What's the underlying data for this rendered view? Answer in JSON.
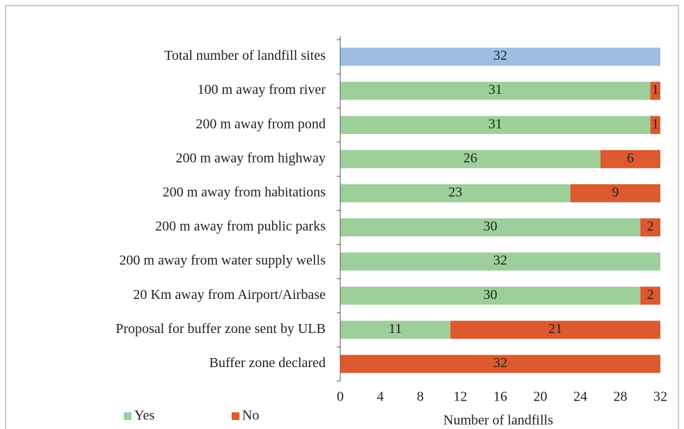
{
  "chart_data": {
    "type": "stacked_bar_horizontal",
    "categories": [
      "Total number of landfill sites",
      "100 m away from river",
      "200 m away from pond",
      "200 m away from highway",
      "200 m away from habitations",
      "200 m away from public parks",
      "200 m away from water supply wells",
      "20 Km away from Airport/Airbase",
      "Proposal for buffer zone sent by ULB",
      "Buffer zone declared"
    ],
    "series": [
      {
        "name": "Yes",
        "color": "#9dcf9b",
        "colors": [
          "#9dbde3",
          "#9dcf9b",
          "#9dcf9b",
          "#9dcf9b",
          "#9dcf9b",
          "#9dcf9b",
          "#9dcf9b",
          "#9dcf9b",
          "#9dcf9b",
          "#9dcf9b"
        ],
        "values": [
          32,
          31,
          31,
          26,
          23,
          30,
          32,
          30,
          11,
          null
        ]
      },
      {
        "name": "No",
        "color": "#dc5a2e",
        "values": [
          null,
          1,
          1,
          6,
          9,
          2,
          null,
          2,
          21,
          32
        ]
      }
    ],
    "xlabel": "Number of landfills",
    "xlim": [
      0,
      32
    ],
    "xticks": [
      0,
      4,
      8,
      12,
      16,
      20,
      24,
      28,
      32
    ],
    "grid": false
  }
}
